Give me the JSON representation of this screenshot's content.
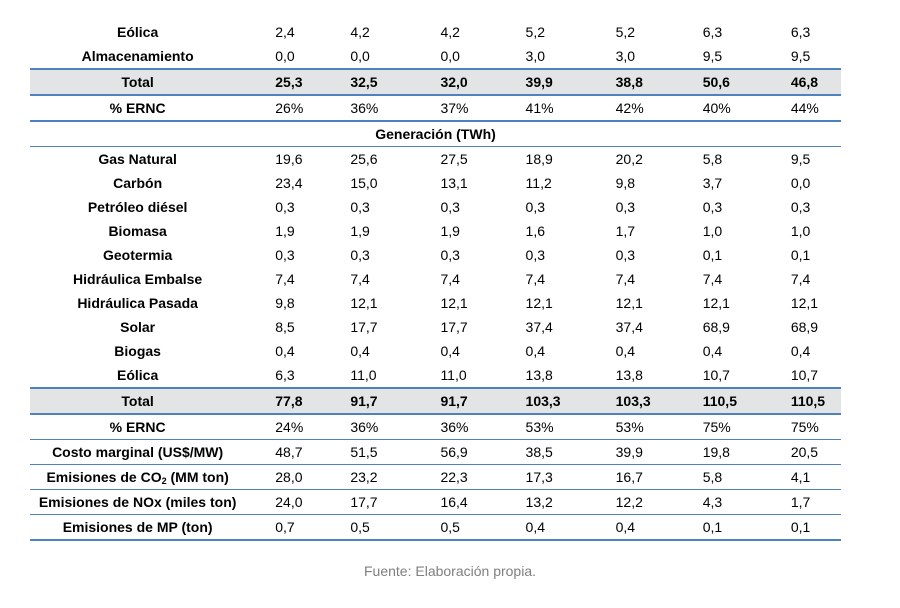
{
  "capacity_rows": [
    {
      "label": "Eólica",
      "values": [
        "2,4",
        "4,2",
        "4,2",
        "5,2",
        "5,2",
        "6,3",
        "6,3"
      ]
    },
    {
      "label": "Almacenamiento",
      "values": [
        "0,0",
        "0,0",
        "0,0",
        "3,0",
        "3,0",
        "9,5",
        "9,5"
      ]
    }
  ],
  "capacity_total": {
    "label": "Total",
    "values": [
      "25,3",
      "32,5",
      "32,0",
      "39,9",
      "38,8",
      "50,6",
      "46,8"
    ]
  },
  "capacity_ernc": {
    "label": "% ERNC",
    "values": [
      "26%",
      "36%",
      "37%",
      "41%",
      "42%",
      "40%",
      "44%"
    ]
  },
  "generation_header": "Generación (TWh)",
  "generation_rows": [
    {
      "label": "Gas Natural",
      "values": [
        "19,6",
        "25,6",
        "27,5",
        "18,9",
        "20,2",
        "5,8",
        "9,5"
      ]
    },
    {
      "label": "Carbón",
      "values": [
        "23,4",
        "15,0",
        "13,1",
        "11,2",
        "9,8",
        "3,7",
        "0,0"
      ]
    },
    {
      "label": "Petróleo diésel",
      "values": [
        "0,3",
        "0,3",
        "0,3",
        "0,3",
        "0,3",
        "0,3",
        "0,3"
      ]
    },
    {
      "label": "Biomasa",
      "values": [
        "1,9",
        "1,9",
        "1,9",
        "1,6",
        "1,7",
        "1,0",
        "1,0"
      ]
    },
    {
      "label": "Geotermia",
      "values": [
        "0,3",
        "0,3",
        "0,3",
        "0,3",
        "0,3",
        "0,1",
        "0,1"
      ]
    },
    {
      "label": "Hidráulica Embalse",
      "values": [
        "7,4",
        "7,4",
        "7,4",
        "7,4",
        "7,4",
        "7,4",
        "7,4"
      ]
    },
    {
      "label": "Hidráulica Pasada",
      "values": [
        "9,8",
        "12,1",
        "12,1",
        "12,1",
        "12,1",
        "12,1",
        "12,1"
      ]
    },
    {
      "label": "Solar",
      "values": [
        "8,5",
        "17,7",
        "17,7",
        "37,4",
        "37,4",
        "68,9",
        "68,9"
      ]
    },
    {
      "label": "Biogas",
      "values": [
        "0,4",
        "0,4",
        "0,4",
        "0,4",
        "0,4",
        "0,4",
        "0,4"
      ]
    },
    {
      "label": "Eólica",
      "values": [
        "6,3",
        "11,0",
        "11,0",
        "13,8",
        "13,8",
        "10,7",
        "10,7"
      ]
    }
  ],
  "generation_total": {
    "label": "Total",
    "values": [
      "77,8",
      "91,7",
      "91,7",
      "103,3",
      "103,3",
      "110,5",
      "110,5"
    ]
  },
  "generation_ernc": {
    "label": "% ERNC",
    "values": [
      "24%",
      "36%",
      "36%",
      "53%",
      "53%",
      "75%",
      "75%"
    ]
  },
  "marginal_cost": {
    "label": "Costo marginal (US$/MW)",
    "values": [
      "48,7",
      "51,5",
      "56,9",
      "38,5",
      "39,9",
      "19,8",
      "20,5"
    ]
  },
  "co2": {
    "label_pre": "Emisiones de CO",
    "label_sub": "2",
    "label_post": " (MM ton)",
    "values": [
      "28,0",
      "23,2",
      "22,3",
      "17,3",
      "16,7",
      "5,8",
      "4,1"
    ]
  },
  "nox": {
    "label": "Emisiones de NOx (miles ton)",
    "values": [
      "24,0",
      "17,7",
      "16,4",
      "13,2",
      "12,2",
      "4,3",
      "1,7"
    ]
  },
  "mp": {
    "label": "Emisiones de MP (ton)",
    "values": [
      "0,7",
      "0,5",
      "0,5",
      "0,4",
      "0,4",
      "0,1",
      "0,1"
    ]
  },
  "source": "Fuente: Elaboración propia."
}
